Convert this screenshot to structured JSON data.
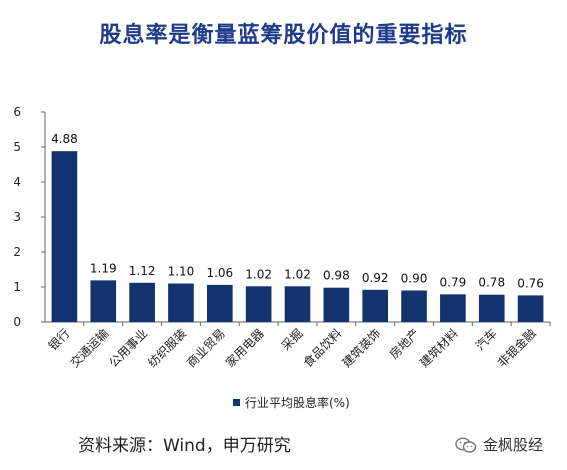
{
  "title": "股息率是衡量蓝筹股价值的重要指标",
  "source": "资料来源：Wind，申万研究",
  "brand": "金枫股经",
  "brand_icon": "wechat-icon",
  "colors": {
    "bar": "#12336e",
    "title": "#1f3c8a"
  },
  "chart_data": {
    "type": "bar",
    "title": "股息率是衡量蓝筹股价值的重要指标",
    "categories": [
      "银行",
      "交通运输",
      "公用事业",
      "纺织服装",
      "商业贸易",
      "家用电器",
      "采掘",
      "食品饮料",
      "建筑装饰",
      "房地产",
      "建筑材料",
      "汽车",
      "非银金融"
    ],
    "series": [
      {
        "name": "行业平均股息率(%)",
        "values": [
          4.88,
          1.19,
          1.12,
          1.1,
          1.06,
          1.02,
          1.02,
          0.98,
          0.92,
          0.9,
          0.79,
          0.78,
          0.76
        ]
      }
    ],
    "value_labels": [
      "4.88",
      "1.19",
      "1.12",
      "1.10",
      "1.06",
      "1.02",
      "1.02",
      "0.98",
      "0.92",
      "0.90",
      "0.79",
      "0.78",
      "0.76"
    ],
    "ylim": [
      0,
      6
    ],
    "yticks": [
      0,
      1,
      2,
      3,
      4,
      5,
      6
    ],
    "grid": false,
    "legend_position": "bottom"
  }
}
